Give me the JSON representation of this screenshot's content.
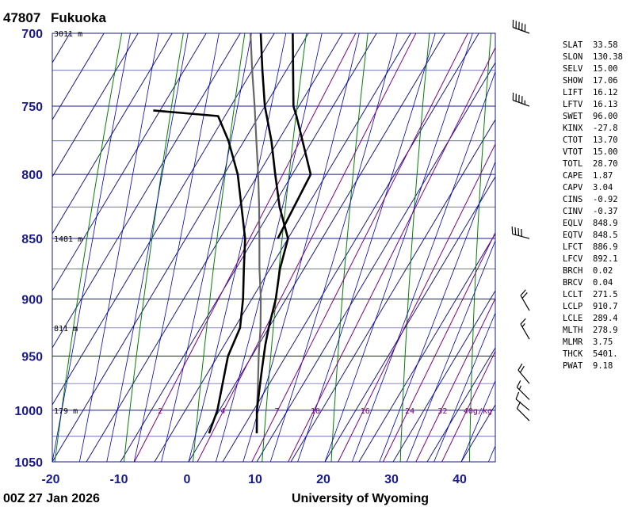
{
  "header": {
    "station_id": "47807",
    "station_name": "Fukuoka"
  },
  "footer": {
    "time": "00Z 27 Jan 2026",
    "source": "University of Wyoming"
  },
  "colors": {
    "grid": "#1a1a8c",
    "dry_adiabat": "#008000",
    "moist_adiabat": "#0000c0",
    "mixing_ratio": "#800080",
    "temperature": "#000000",
    "dewpoint": "#000000",
    "parcel": "#666666"
  },
  "chart_data": {
    "type": "skew-t",
    "title": "",
    "p_range": [
      1050,
      700
    ],
    "t_range": [
      -20,
      45
    ],
    "isobars": [
      700,
      750,
      800,
      850,
      900,
      950,
      1000,
      1050
    ],
    "minor_isobars": [
      725,
      775,
      825,
      875,
      925,
      975,
      1025
    ],
    "temp_ticks": [
      -20,
      -10,
      0,
      10,
      20,
      30,
      40
    ],
    "height_labels": [
      {
        "p": 700,
        "text": "3011 m"
      },
      {
        "p": 850,
        "text": "1481 m"
      },
      {
        "p": 925,
        "text": "811 m"
      },
      {
        "p": 1000,
        "text": "179 m"
      }
    ],
    "mixing_ratio_labels": [
      "2",
      "4",
      "7",
      "10",
      "16",
      "24",
      "32",
      "40g/kg"
    ],
    "temperature": [
      {
        "p": 1022,
        "t": 7.5
      },
      {
        "p": 1000,
        "t": 5.5
      },
      {
        "p": 980,
        "t": 4.0
      },
      {
        "p": 960,
        "t": 2.5
      },
      {
        "p": 940,
        "t": 1.0
      },
      {
        "p": 925,
        "t": 0.0
      },
      {
        "p": 900,
        "t": -1.5
      },
      {
        "p": 875,
        "t": -3.5
      },
      {
        "p": 850,
        "t": -5.0
      },
      {
        "p": 825,
        "t": -9.0
      },
      {
        "p": 800,
        "t": -12.5
      },
      {
        "p": 775,
        "t": -16.0
      },
      {
        "p": 750,
        "t": -20.0
      },
      {
        "p": 725,
        "t": -23.5
      },
      {
        "p": 700,
        "t": -27.0
      }
    ],
    "dewpoint": [
      {
        "p": 1022,
        "t": 0.5
      },
      {
        "p": 1000,
        "t": -0.3
      },
      {
        "p": 950,
        "t": -3.5
      },
      {
        "p": 925,
        "t": -4.2
      },
      {
        "p": 900,
        "t": -6.3
      },
      {
        "p": 875,
        "t": -8.8
      },
      {
        "p": 850,
        "t": -11.3
      },
      {
        "p": 800,
        "t": -18.0
      },
      {
        "p": 775,
        "t": -22.3
      },
      {
        "p": 757,
        "t": -26.0
      },
      {
        "p": 753,
        "t": -36.0
      }
    ],
    "dewpoint_upper": [
      {
        "p": 850,
        "t": -6.5
      },
      {
        "p": 800,
        "t": -7.3
      },
      {
        "p": 757,
        "t": -14.5
      },
      {
        "p": 750,
        "t": -15.8
      },
      {
        "p": 700,
        "t": -22.3
      }
    ],
    "parcel": [
      {
        "p": 1022,
        "t": 7.5
      },
      {
        "p": 1000,
        "t": 5.5
      },
      {
        "p": 975,
        "t": 3.3
      },
      {
        "p": 950,
        "t": 1.0
      },
      {
        "p": 925,
        "t": -1.2
      },
      {
        "p": 900,
        "t": -3.7
      },
      {
        "p": 875,
        "t": -6.5
      },
      {
        "p": 850,
        "t": -9.2
      },
      {
        "p": 825,
        "t": -12.0
      },
      {
        "p": 800,
        "t": -15.0
      },
      {
        "p": 775,
        "t": -18.2
      },
      {
        "p": 750,
        "t": -21.5
      },
      {
        "p": 725,
        "t": -25.0
      },
      {
        "p": 700,
        "t": -28.5
      }
    ],
    "wind_barbs": [
      {
        "p": 700,
        "dir": 290,
        "speed": 50
      },
      {
        "p": 750,
        "dir": 290,
        "speed": 45
      },
      {
        "p": 850,
        "dir": 285,
        "speed": 40
      },
      {
        "p": 910,
        "dir": 330,
        "speed": 20
      },
      {
        "p": 935,
        "dir": 330,
        "speed": 15
      },
      {
        "p": 975,
        "dir": 320,
        "speed": 20
      },
      {
        "p": 990,
        "dir": 315,
        "speed": 15
      },
      {
        "p": 1000,
        "dir": 310,
        "speed": 10
      },
      {
        "p": 1010,
        "dir": 315,
        "speed": 10
      }
    ],
    "indices": [
      {
        "name": "SLAT",
        "value": "33.58"
      },
      {
        "name": "SLON",
        "value": "130.38"
      },
      {
        "name": "SELV",
        "value": "15.00"
      },
      {
        "name": "SHOW",
        "value": "17.06"
      },
      {
        "name": "LIFT",
        "value": "16.12"
      },
      {
        "name": "LFTV",
        "value": "16.13"
      },
      {
        "name": "SWET",
        "value": "96.00"
      },
      {
        "name": "KINX",
        "value": "-27.8"
      },
      {
        "name": "CTOT",
        "value": "13.70"
      },
      {
        "name": "VTOT",
        "value": "15.00"
      },
      {
        "name": "TOTL",
        "value": "28.70"
      },
      {
        "name": "CAPE",
        "value": "1.87"
      },
      {
        "name": "CAPV",
        "value": "3.04"
      },
      {
        "name": "CINS",
        "value": "-0.92"
      },
      {
        "name": "CINV",
        "value": "-0.37"
      },
      {
        "name": "EQLV",
        "value": "848.9"
      },
      {
        "name": "EQTV",
        "value": "848.5"
      },
      {
        "name": "LFCT",
        "value": "886.9"
      },
      {
        "name": "LFCV",
        "value": "892.1"
      },
      {
        "name": "BRCH",
        "value": "0.02"
      },
      {
        "name": "BRCV",
        "value": "0.04"
      },
      {
        "name": "LCLT",
        "value": "271.5"
      },
      {
        "name": "LCLP",
        "value": "910.7"
      },
      {
        "name": "LCLE",
        "value": "289.4"
      },
      {
        "name": "MLTH",
        "value": "278.9"
      },
      {
        "name": "MLMR",
        "value": "3.75"
      },
      {
        "name": "THCK",
        "value": "5401."
      },
      {
        "name": "PWAT",
        "value": "9.18"
      }
    ]
  }
}
